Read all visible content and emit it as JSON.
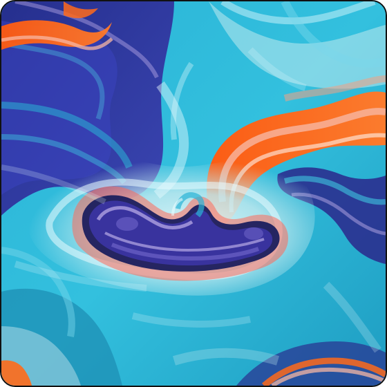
{
  "image": {
    "kind": "abstract fluid marbling artwork",
    "colors": {
      "cyan": "#2ab3d6",
      "light_aqua": "#bfe9ef",
      "teal": "#1e8fb4",
      "navy": "#2a2f8f",
      "indigo": "#3d3aa3",
      "orange": "#ff6a1a",
      "peach": "#f7b7a3",
      "lavender": "#b7a9e6"
    }
  }
}
